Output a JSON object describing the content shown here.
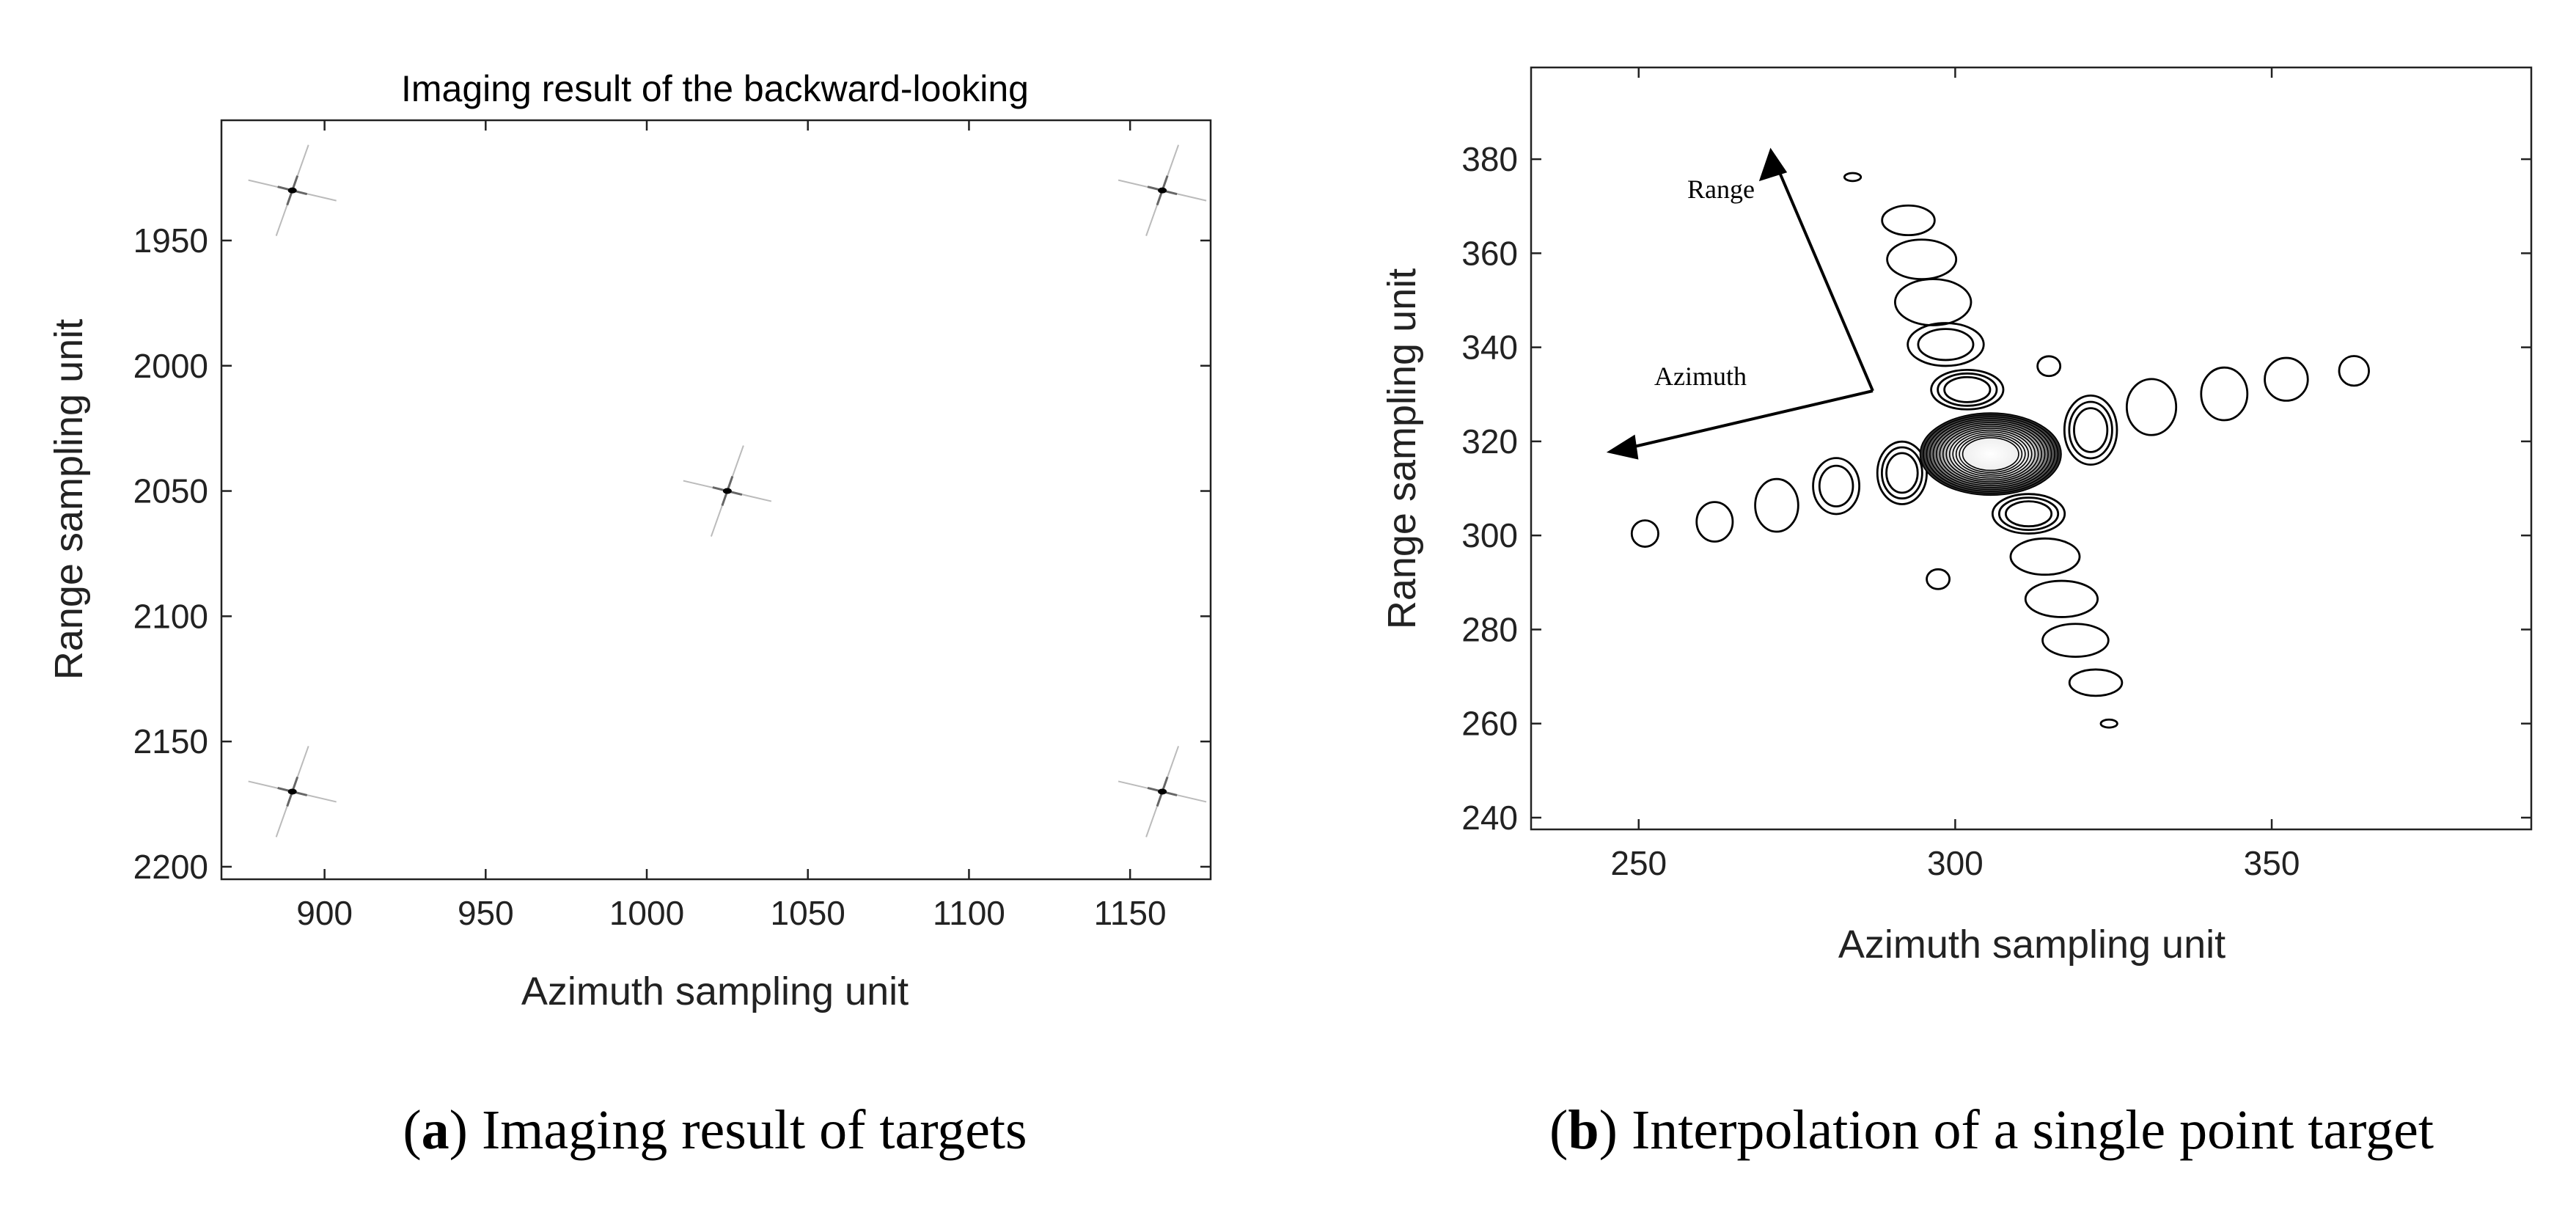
{
  "chart_data": [
    {
      "type": "scatter",
      "title": "Imaging result of the backward-looking",
      "xlabel": "Azimuth sampling unit",
      "ylabel": "Range sampling unit",
      "x": [
        890,
        1160,
        1025,
        890,
        1160
      ],
      "y": [
        1930,
        1930,
        2050,
        2170,
        2170
      ],
      "xlim": [
        868,
        1175
      ],
      "ylim": [
        1902,
        2205
      ],
      "yreverse": true,
      "xticks": [
        900,
        950,
        1000,
        1050,
        1100,
        1150
      ],
      "yticks": [
        1950,
        2000,
        2050,
        2100,
        2150,
        2200
      ],
      "caption": "(a) Imaging result of targets"
    },
    {
      "type": "contour",
      "xlabel": "Azimuth sampling unit",
      "ylabel": "Range sampling unit",
      "xlim": [
        233,
        391
      ],
      "ylim": [
        237.5,
        399.5
      ],
      "xticks": [
        250,
        300,
        350
      ],
      "yticks": [
        240,
        260,
        280,
        300,
        320,
        340,
        360,
        380
      ],
      "annotations": [
        "Range",
        "Azimuth"
      ],
      "lobes": {
        "x": [
          251,
          262,
          271.8,
          281.2,
          291.6,
          305.6,
          321.4,
          331,
          342.5,
          352.3,
          363,
          283.8,
          292.6,
          294.7,
          296.5,
          298.5,
          301.9,
          311.6,
          314.2,
          316.8,
          319,
          322.2,
          324.3,
          314.8,
          297.3
        ],
        "y": [
          300.4,
          302.9,
          306.4,
          310.5,
          313.3,
          317.3,
          322.4,
          327.3,
          330.1,
          333.2,
          335,
          376.2,
          367,
          358.7,
          349.6,
          340.6,
          331,
          304.6,
          295.5,
          286.5,
          277.7,
          268.7,
          260,
          336,
          290.7
        ],
        "width": [
          4.2,
          5.7,
          6.8,
          7.3,
          7.8,
          22.3,
          8.3,
          7.8,
          7.3,
          6.8,
          4.7,
          2.6,
          8.3,
          10.9,
          12,
          12,
          11.4,
          11.4,
          10.9,
          11.4,
          10.4,
          8.3,
          2.6,
          3.6,
          3.6
        ],
        "height": [
          5.6,
          8.4,
          11.2,
          11.9,
          13.3,
          17.5,
          14.7,
          11.9,
          11.2,
          9.1,
          6.3,
          1.7,
          6.3,
          8.4,
          9.8,
          9.1,
          8.4,
          8.4,
          7.7,
          7.7,
          7,
          5.6,
          1.7,
          4.2,
          4.2
        ],
        "levels": [
          1,
          1,
          1,
          2,
          3,
          14,
          3,
          1,
          1,
          1,
          1,
          1,
          1,
          1,
          1,
          2,
          3,
          3,
          1,
          1,
          1,
          1,
          1,
          1,
          1
        ]
      },
      "caption": "(b) Interpolation of a single point target"
    }
  ]
}
